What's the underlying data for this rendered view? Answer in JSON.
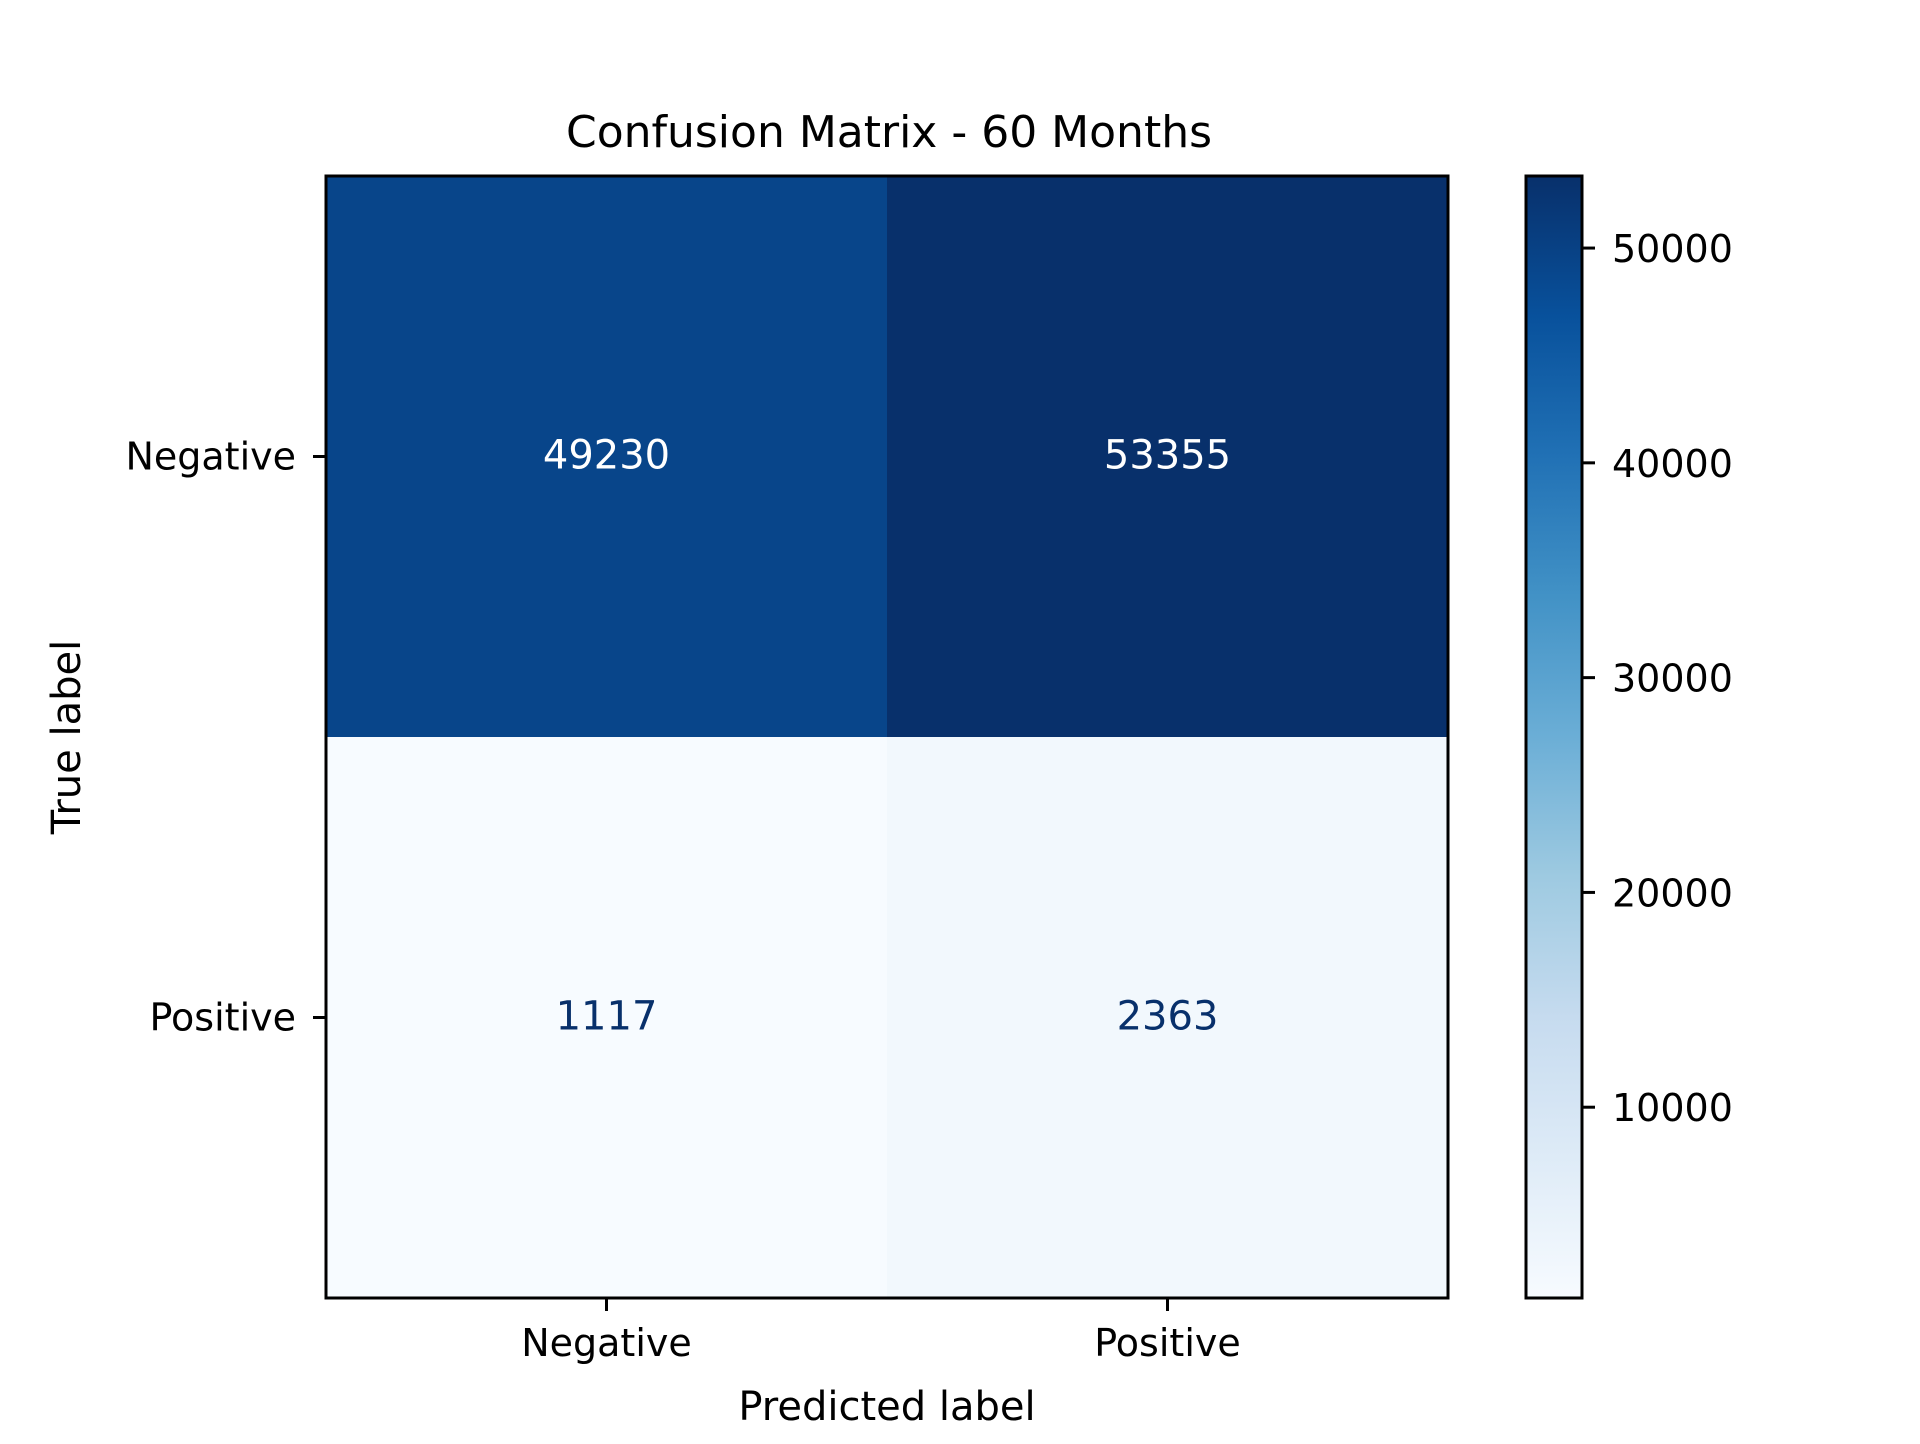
{
  "chart_data": {
    "type": "heatmap",
    "title": "Confusion Matrix - 60 Months",
    "xlabel": "Predicted label",
    "ylabel": "True label",
    "x_categories": [
      "Negative",
      "Positive"
    ],
    "y_categories": [
      "Negative",
      "Positive"
    ],
    "values": [
      [
        49230,
        53355
      ],
      [
        1117,
        2363
      ]
    ],
    "colormap": "Blues",
    "colorbar": {
      "min": 1117,
      "max": 53355,
      "ticks": [
        10000,
        20000,
        30000,
        40000,
        50000
      ],
      "tick_labels": [
        "10000",
        "20000",
        "30000",
        "40000",
        "50000"
      ]
    },
    "colors": {
      "cell_text_dark_background": "#ffffff",
      "cell_text_light_background": "#08306b",
      "axes": "#000000"
    }
  }
}
